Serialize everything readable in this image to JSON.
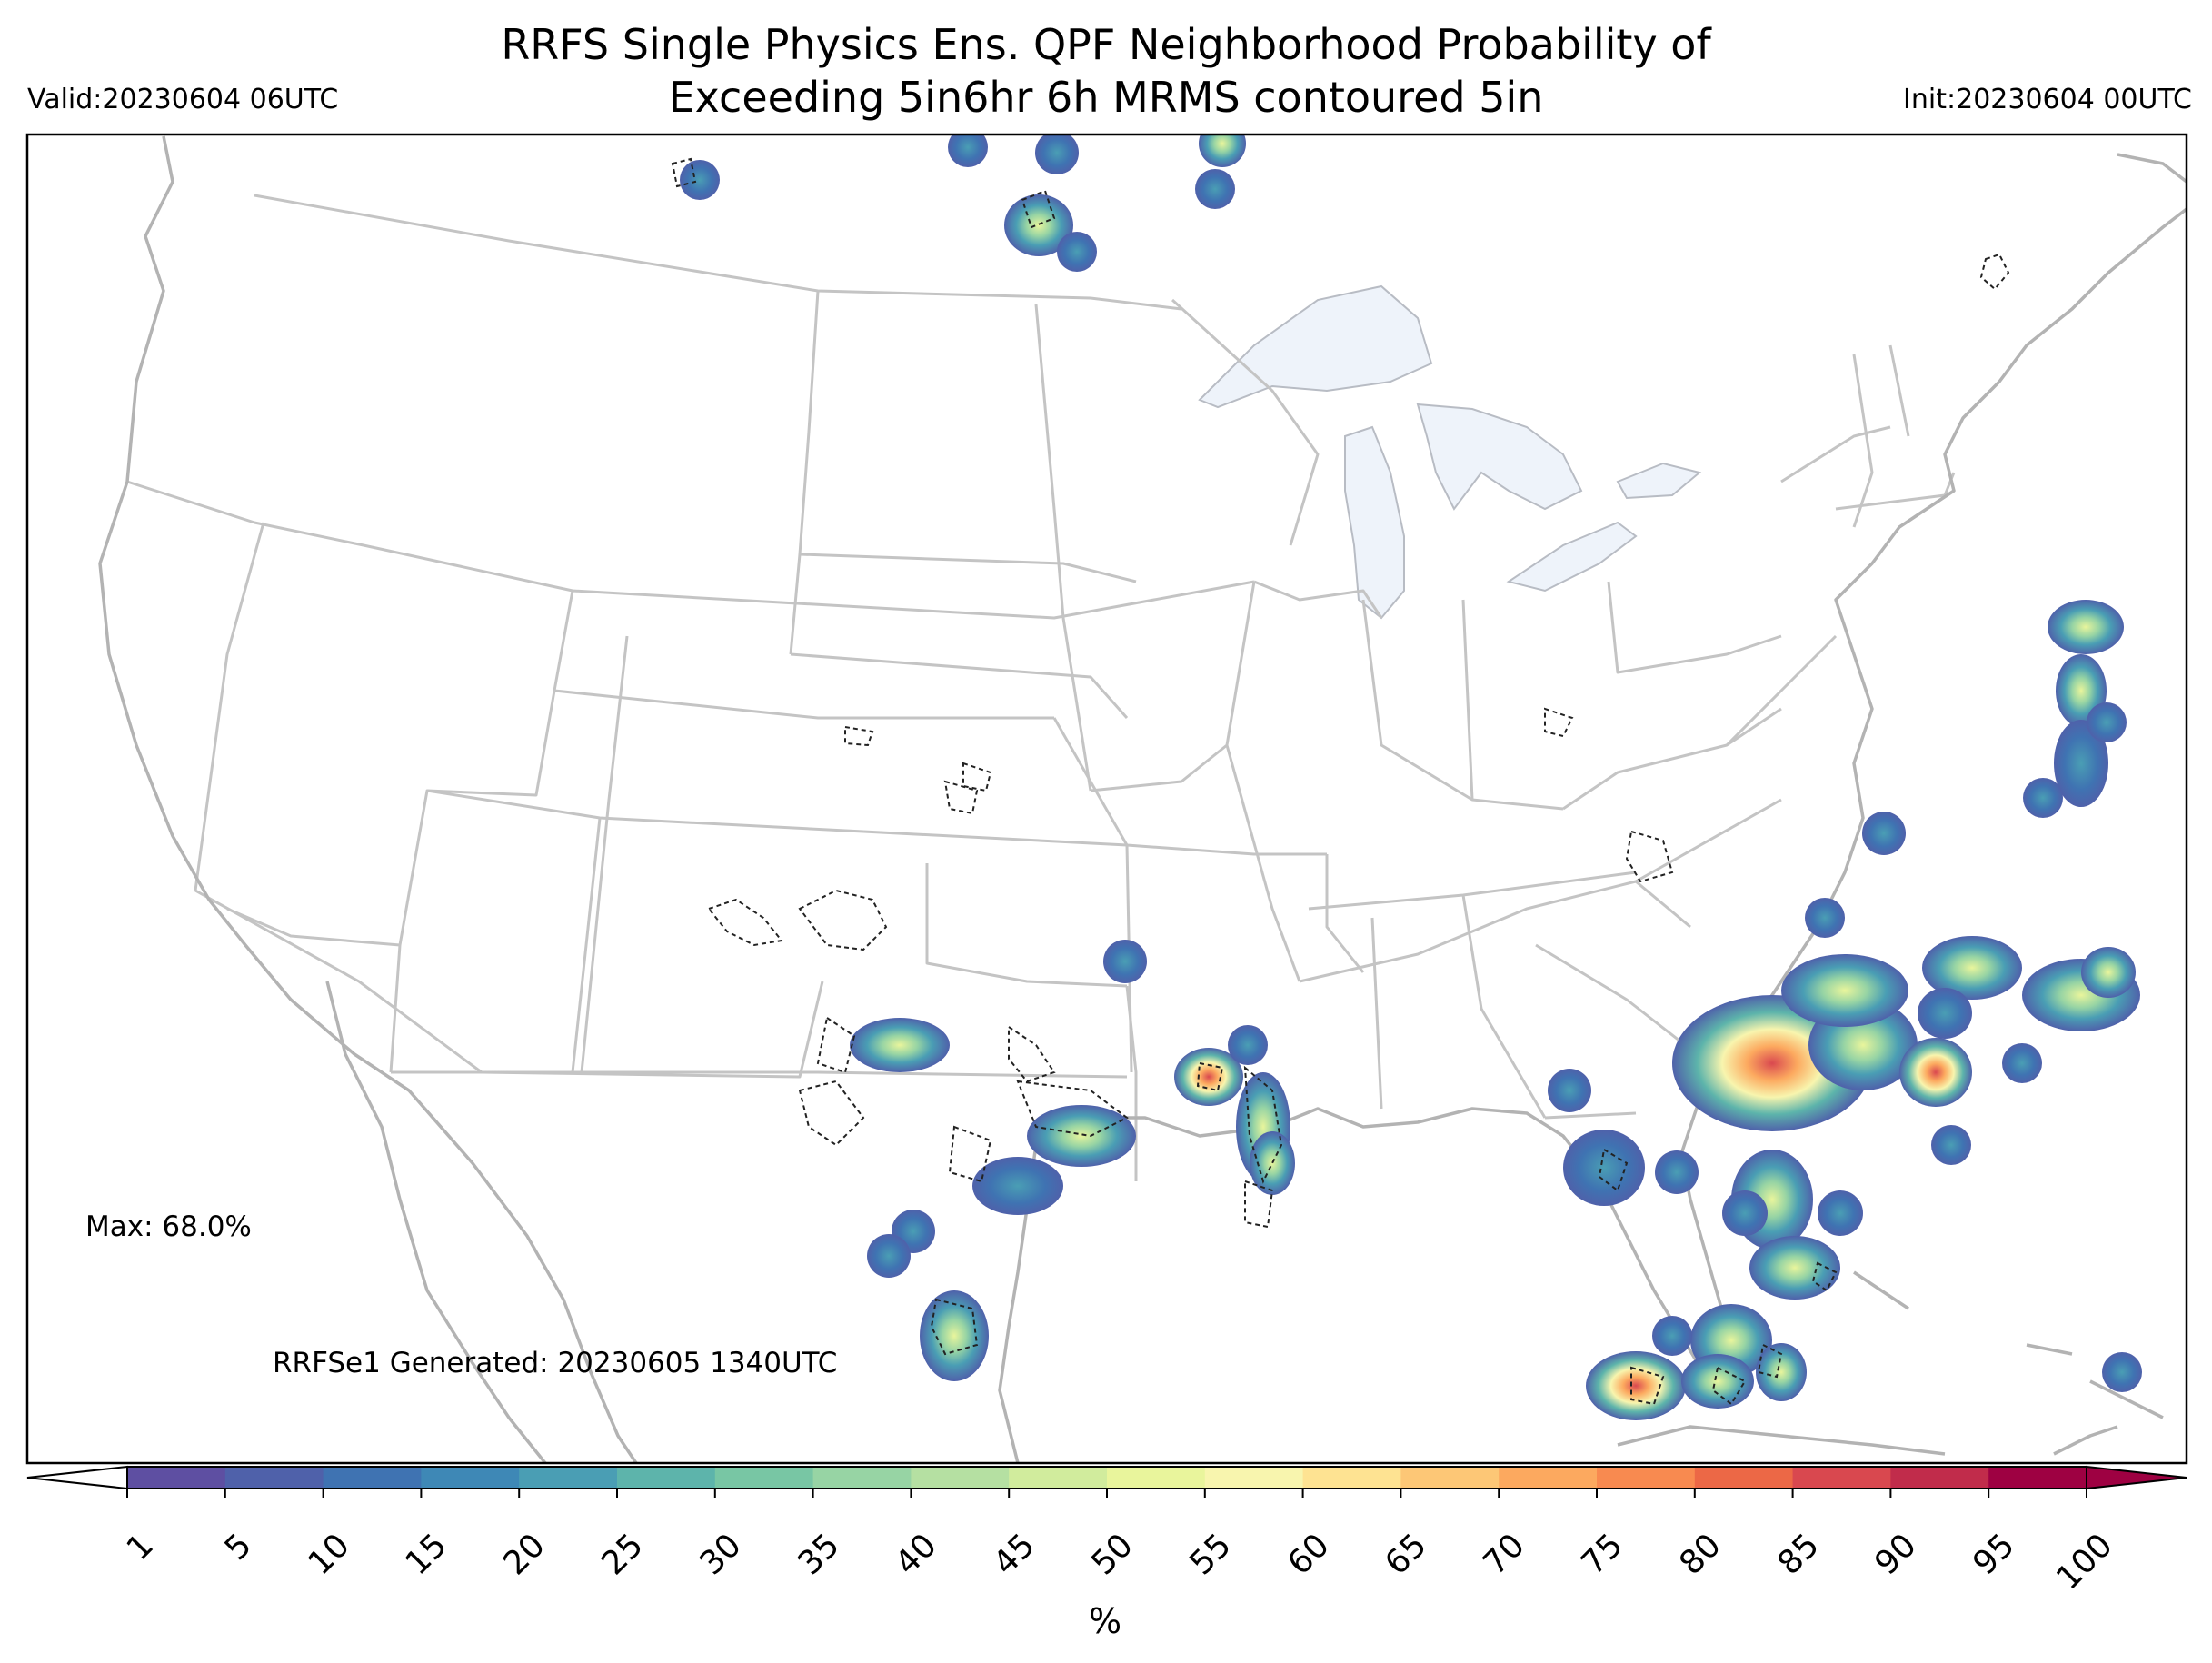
{
  "title": {
    "line1": "RRFS Single Physics Ens. QPF Neighborhood Probability of",
    "line2": "Exceeding 5in6hr 6h MRMS contoured 5in"
  },
  "valid_label": "Valid:20230604 06UTC",
  "init_label": "Init:20230604 00UTC",
  "max_label": "Max: 68.0%",
  "generated_label": "RRFSe1 Generated: 20230605 1340UTC",
  "colorbar": {
    "unit": "%",
    "ticks": [
      "1",
      "5",
      "10",
      "15",
      "20",
      "25",
      "30",
      "35",
      "40",
      "45",
      "50",
      "55",
      "60",
      "65",
      "70",
      "75",
      "80",
      "85",
      "90",
      "95",
      "100"
    ],
    "colors": [
      "#5e4fa2",
      "#4f61aa",
      "#3f73b2",
      "#3e88b6",
      "#4a9eb4",
      "#5db4ab",
      "#78c6a4",
      "#97d4a4",
      "#b5e0a2",
      "#d1ec9d",
      "#e9f59c",
      "#f8f5ae",
      "#fee392",
      "#fdc776",
      "#fca95f",
      "#f88a50",
      "#ec6846",
      "#d9484f",
      "#c12c4b",
      "#9e0142"
    ],
    "under_color": "#ffffff",
    "over_color": "#9e0142"
  },
  "colors": {
    "state_lines": "#c4c4c4",
    "coastline": "#b3b3b3",
    "lakes": "#eef3fa",
    "contour": "#222222"
  }
}
